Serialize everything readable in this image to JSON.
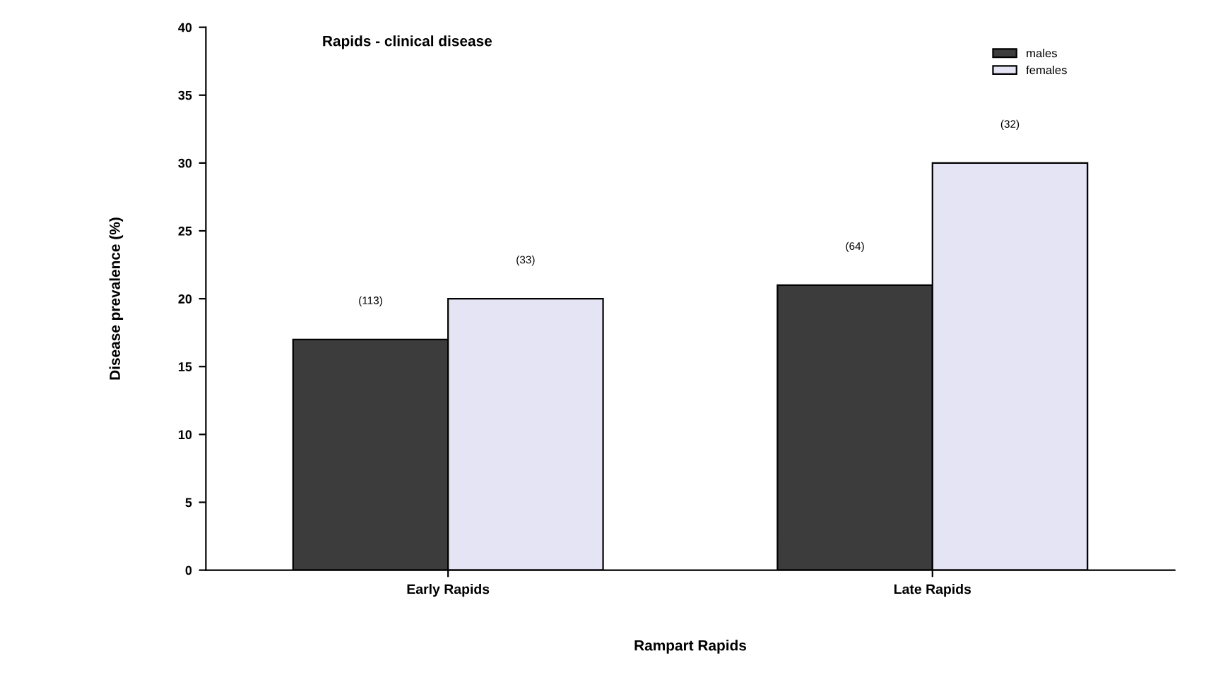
{
  "chart_data": {
    "type": "bar",
    "title": "Rapids - clinical disease",
    "xlabel": "Rampart Rapids",
    "ylabel": "Disease prevalence (%)",
    "categories": [
      "Early Rapids",
      "Late Rapids"
    ],
    "series": [
      {
        "name": "males",
        "color": "#3c3c3c",
        "values": [
          17,
          21
        ]
      },
      {
        "name": "females",
        "color": "#e4e4f4",
        "values": [
          20,
          30
        ]
      }
    ],
    "annotations": [
      "(113)",
      "(33)",
      "(64)",
      "(32)"
    ],
    "ylim": [
      0,
      40
    ],
    "yticks": [
      0,
      5,
      10,
      15,
      20,
      25,
      30,
      35,
      40
    ],
    "legend": "top right"
  }
}
